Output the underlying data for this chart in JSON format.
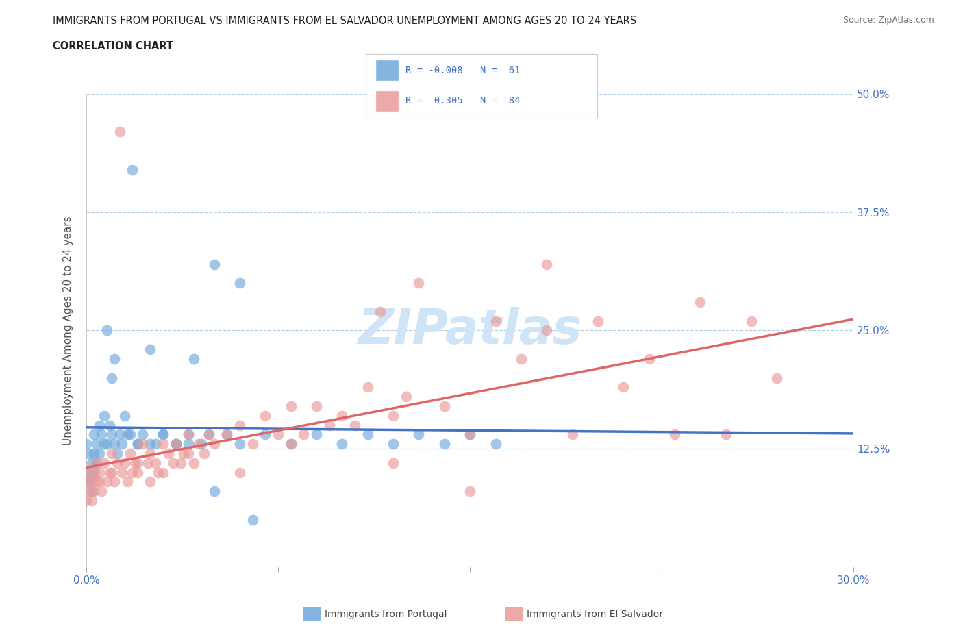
{
  "title_line1": "IMMIGRANTS FROM PORTUGAL VS IMMIGRANTS FROM EL SALVADOR UNEMPLOYMENT AMONG AGES 20 TO 24 YEARS",
  "title_line2": "CORRELATION CHART",
  "source": "Source: ZipAtlas.com",
  "ylabel": "Unemployment Among Ages 20 to 24 years",
  "xlim": [
    0.0,
    0.3
  ],
  "ylim": [
    0.0,
    0.5
  ],
  "ytick_positions": [
    0.125,
    0.25,
    0.375,
    0.5
  ],
  "ytick_labels_right": [
    "12.5%",
    "25.0%",
    "37.5%",
    "50.0%"
  ],
  "color_portugal": "#6fa8dc",
  "color_el_salvador": "#ea9999",
  "color_portugal_line": "#4472c4",
  "color_el_salvador_line": "#e06666",
  "R_portugal": -0.008,
  "N_portugal": 61,
  "R_el_salvador": 0.305,
  "N_el_salvador": 84,
  "grid_color": "#9fc5e8",
  "background_color": "#ffffff",
  "title_color": "#222222",
  "tick_label_color": "#4472c4",
  "watermark_color": "#d0e4f7",
  "portugal_x": [
    0.0,
    0.0,
    0.001,
    0.001,
    0.002,
    0.002,
    0.003,
    0.003,
    0.003,
    0.004,
    0.004,
    0.005,
    0.005,
    0.006,
    0.007,
    0.007,
    0.008,
    0.008,
    0.009,
    0.01,
    0.01,
    0.011,
    0.011,
    0.012,
    0.013,
    0.014,
    0.015,
    0.016,
    0.017,
    0.018,
    0.02,
    0.022,
    0.025,
    0.027,
    0.03,
    0.035,
    0.04,
    0.042,
    0.045,
    0.048,
    0.05,
    0.055,
    0.06,
    0.065,
    0.07,
    0.08,
    0.09,
    0.1,
    0.11,
    0.12,
    0.13,
    0.14,
    0.15,
    0.16,
    0.05,
    0.06,
    0.03,
    0.02,
    0.025,
    0.04,
    0.035
  ],
  "portugal_y": [
    0.13,
    0.1,
    0.12,
    0.09,
    0.11,
    0.08,
    0.14,
    0.1,
    0.12,
    0.11,
    0.13,
    0.15,
    0.12,
    0.14,
    0.16,
    0.13,
    0.25,
    0.13,
    0.15,
    0.2,
    0.14,
    0.13,
    0.22,
    0.12,
    0.14,
    0.13,
    0.16,
    0.14,
    0.14,
    0.42,
    0.13,
    0.14,
    0.23,
    0.13,
    0.14,
    0.13,
    0.13,
    0.22,
    0.13,
    0.14,
    0.08,
    0.14,
    0.13,
    0.05,
    0.14,
    0.13,
    0.14,
    0.13,
    0.14,
    0.13,
    0.14,
    0.13,
    0.14,
    0.13,
    0.32,
    0.3,
    0.14,
    0.13,
    0.13,
    0.14,
    0.13
  ],
  "el_salvador_x": [
    0.0,
    0.0,
    0.001,
    0.001,
    0.002,
    0.002,
    0.003,
    0.003,
    0.004,
    0.004,
    0.005,
    0.006,
    0.007,
    0.008,
    0.009,
    0.01,
    0.011,
    0.012,
    0.013,
    0.014,
    0.015,
    0.016,
    0.017,
    0.018,
    0.019,
    0.02,
    0.022,
    0.024,
    0.025,
    0.027,
    0.028,
    0.03,
    0.032,
    0.034,
    0.035,
    0.037,
    0.038,
    0.04,
    0.042,
    0.044,
    0.046,
    0.048,
    0.05,
    0.055,
    0.06,
    0.065,
    0.07,
    0.075,
    0.08,
    0.085,
    0.09,
    0.095,
    0.1,
    0.105,
    0.11,
    0.115,
    0.12,
    0.125,
    0.13,
    0.14,
    0.15,
    0.16,
    0.17,
    0.18,
    0.19,
    0.2,
    0.21,
    0.22,
    0.23,
    0.24,
    0.25,
    0.26,
    0.27,
    0.18,
    0.15,
    0.12,
    0.08,
    0.06,
    0.04,
    0.03,
    0.025,
    0.02,
    0.01,
    0.005
  ],
  "el_salvador_y": [
    0.09,
    0.07,
    0.1,
    0.08,
    0.09,
    0.07,
    0.1,
    0.08,
    0.11,
    0.09,
    0.1,
    0.08,
    0.11,
    0.09,
    0.1,
    0.12,
    0.09,
    0.11,
    0.46,
    0.1,
    0.11,
    0.09,
    0.12,
    0.1,
    0.11,
    0.1,
    0.13,
    0.11,
    0.12,
    0.11,
    0.1,
    0.13,
    0.12,
    0.11,
    0.13,
    0.11,
    0.12,
    0.14,
    0.11,
    0.13,
    0.12,
    0.14,
    0.13,
    0.14,
    0.15,
    0.13,
    0.16,
    0.14,
    0.17,
    0.14,
    0.17,
    0.15,
    0.16,
    0.15,
    0.19,
    0.27,
    0.16,
    0.18,
    0.3,
    0.17,
    0.14,
    0.26,
    0.22,
    0.25,
    0.14,
    0.26,
    0.19,
    0.22,
    0.14,
    0.28,
    0.14,
    0.26,
    0.2,
    0.32,
    0.08,
    0.11,
    0.13,
    0.1,
    0.12,
    0.1,
    0.09,
    0.11,
    0.1,
    0.09
  ]
}
